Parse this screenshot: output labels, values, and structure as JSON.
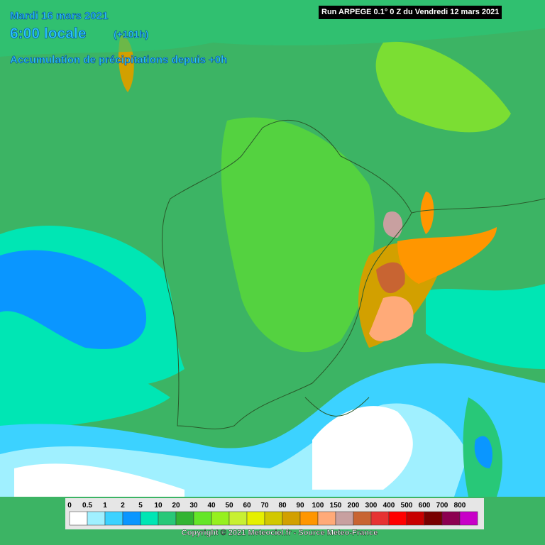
{
  "header": {
    "date": "Mardi 16 mars 2021",
    "time": "6:00 locale",
    "lead": "(+101h)",
    "product": "Accumulation de précipitations depuis +0h",
    "run": "Run ARPEGE 0.1° 0 Z du Vendredi 12 mars 2021"
  },
  "legend": {
    "items": [
      {
        "label": "0",
        "color": "#ffffff"
      },
      {
        "label": "0.5",
        "color": "#a0f0ff"
      },
      {
        "label": "1",
        "color": "#3cd2ff"
      },
      {
        "label": "2",
        "color": "#0a96ff"
      },
      {
        "label": "5",
        "color": "#00e6b4"
      },
      {
        "label": "10",
        "color": "#28c878"
      },
      {
        "label": "20",
        "color": "#32b432"
      },
      {
        "label": "30",
        "color": "#64e628"
      },
      {
        "label": "40",
        "color": "#96f01e"
      },
      {
        "label": "50",
        "color": "#c8f032"
      },
      {
        "label": "60",
        "color": "#e6f000"
      },
      {
        "label": "70",
        "color": "#d2c800"
      },
      {
        "label": "80",
        "color": "#d2a000"
      },
      {
        "label": "90",
        "color": "#ff9600"
      },
      {
        "label": "100",
        "color": "#ffaa78"
      },
      {
        "label": "150",
        "color": "#c8a0a0"
      },
      {
        "label": "200",
        "color": "#c86432"
      },
      {
        "label": "300",
        "color": "#e63232"
      },
      {
        "label": "400",
        "color": "#ff0000"
      },
      {
        "label": "500",
        "color": "#c80000"
      },
      {
        "label": "600",
        "color": "#780000"
      },
      {
        "label": "700",
        "color": "#8c0050"
      },
      {
        "label": "800",
        "color": "#c800c8"
      }
    ]
  },
  "footer": {
    "copyright": "Copyright © 2021 Meteociel.fr - Source Meteo-France"
  }
}
